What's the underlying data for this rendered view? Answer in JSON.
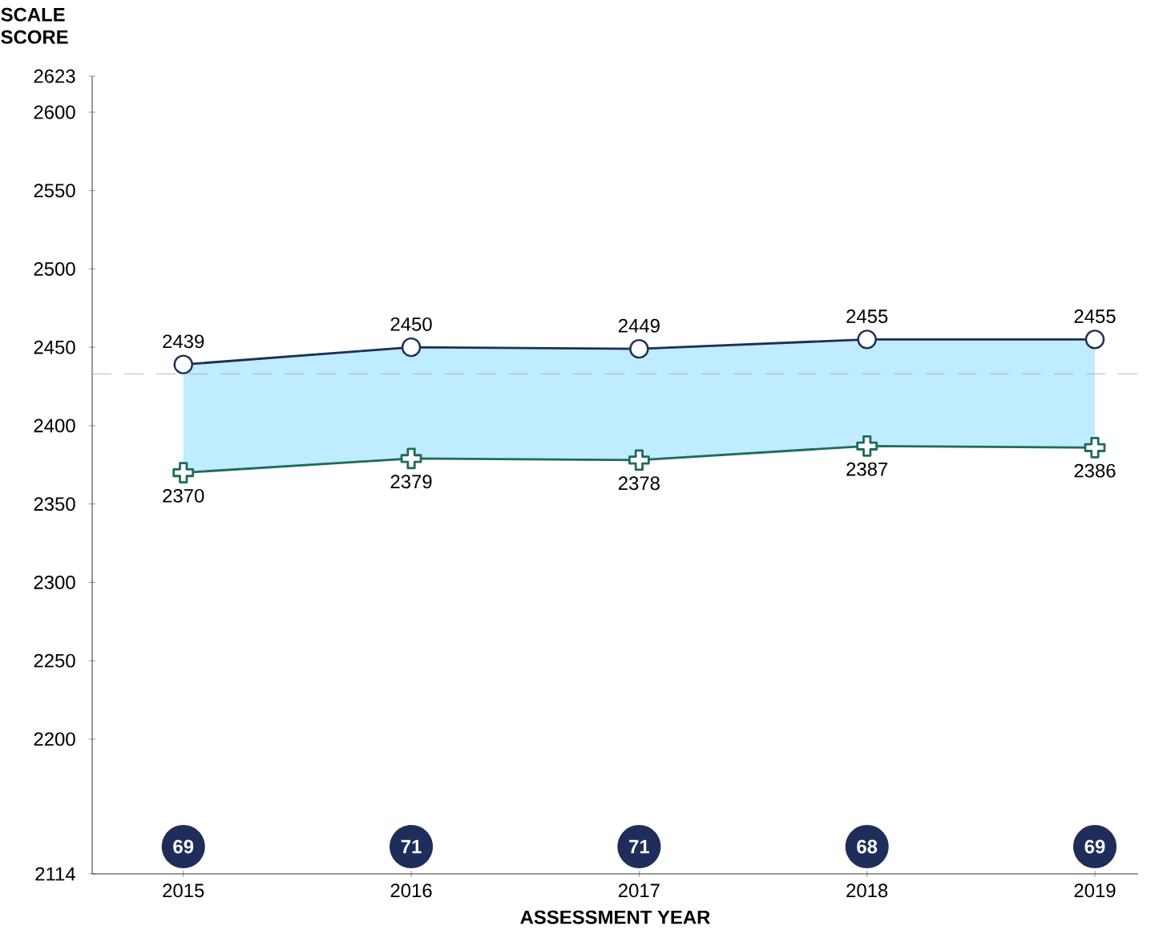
{
  "chart_data": {
    "type": "line",
    "xlabel": "ASSESSMENT YEAR",
    "ylabel": "SCALE SCORE",
    "categories": [
      "2015",
      "2016",
      "2017",
      "2018",
      "2019"
    ],
    "series": [
      {
        "color": "#1f2d5a",
        "marker": "circle",
        "values": [
          2439,
          2450,
          2449,
          2455,
          2455
        ],
        "upper": [
          2439,
          2450,
          2449,
          2455,
          2455
        ],
        "lower": [
          2370,
          2379,
          2378,
          2387,
          2386
        ]
      },
      {
        "color": "#1f6b5a",
        "marker": "cross",
        "values": [
          2370,
          2379,
          2378,
          2387,
          2386
        ]
      }
    ],
    "ylim": [
      2114,
      2623
    ],
    "yticks": [
      2114,
      2200,
      2250,
      2300,
      2350,
      2400,
      2450,
      2500,
      2550,
      2600,
      2623
    ],
    "data_labels": true,
    "ref_lines": [
      {
        "axis": "y",
        "value": 2433,
        "color": "#a6a6a6",
        "line_style": "dashed"
      }
    ],
    "annotations": [
      "69",
      "71",
      "71",
      "68",
      "69"
    ]
  }
}
